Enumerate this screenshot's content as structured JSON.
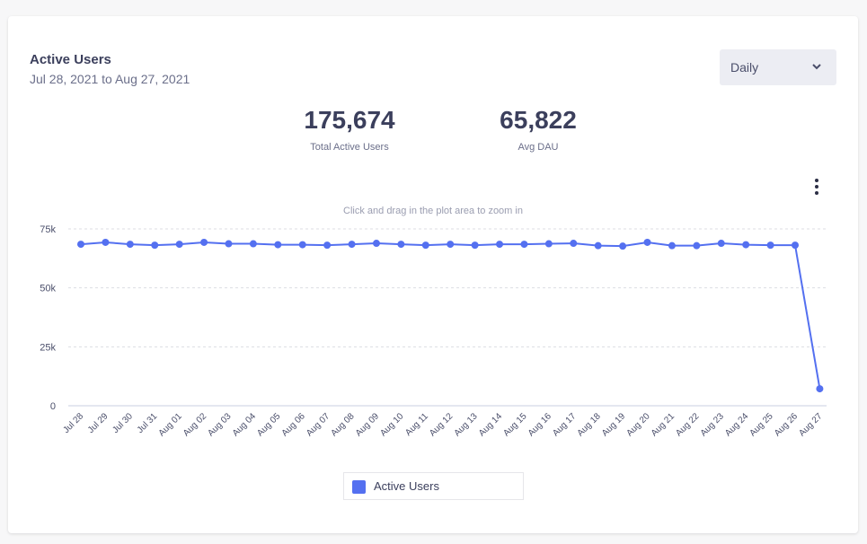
{
  "header": {
    "title": "Active Users",
    "date_range": "Jul 28, 2021 to Aug 27, 2021"
  },
  "interval_select": {
    "selected": "Daily",
    "icon": "chevron-down-icon"
  },
  "stats": [
    {
      "value": "175,674",
      "label": "Total Active Users"
    },
    {
      "value": "65,822",
      "label": "Avg DAU"
    }
  ],
  "menu_icon": "kebab-menu-icon",
  "hint": "Click and drag in the plot area to zoom in",
  "colors": {
    "series": "#5470f0",
    "text": "#3b3f5c",
    "grid": "#dcdde3"
  },
  "chart_data": {
    "type": "line",
    "title": "",
    "xlabel": "",
    "ylabel": "",
    "ylim": [
      0,
      75000
    ],
    "yticks": [
      0,
      25000,
      50000,
      75000
    ],
    "ytick_labels": [
      "0",
      "25k",
      "50k",
      "75k"
    ],
    "grid": true,
    "legend": "bottom-center",
    "categories": [
      "Jul 28",
      "Jul 29",
      "Jul 30",
      "Jul 31",
      "Aug 01",
      "Aug 02",
      "Aug 03",
      "Aug 04",
      "Aug 05",
      "Aug 06",
      "Aug 07",
      "Aug 08",
      "Aug 09",
      "Aug 10",
      "Aug 11",
      "Aug 12",
      "Aug 13",
      "Aug 14",
      "Aug 15",
      "Aug 16",
      "Aug 17",
      "Aug 18",
      "Aug 19",
      "Aug 20",
      "Aug 21",
      "Aug 22",
      "Aug 23",
      "Aug 24",
      "Aug 25",
      "Aug 26",
      "Aug 27"
    ],
    "series": [
      {
        "name": "Active Users",
        "values": [
          68500,
          69300,
          68500,
          68100,
          68500,
          69300,
          68700,
          68700,
          68300,
          68300,
          68100,
          68500,
          68900,
          68500,
          68100,
          68500,
          68100,
          68500,
          68500,
          68700,
          68900,
          67900,
          67700,
          69300,
          67900,
          67900,
          68900,
          68300,
          68100,
          68100,
          7200
        ]
      }
    ]
  }
}
